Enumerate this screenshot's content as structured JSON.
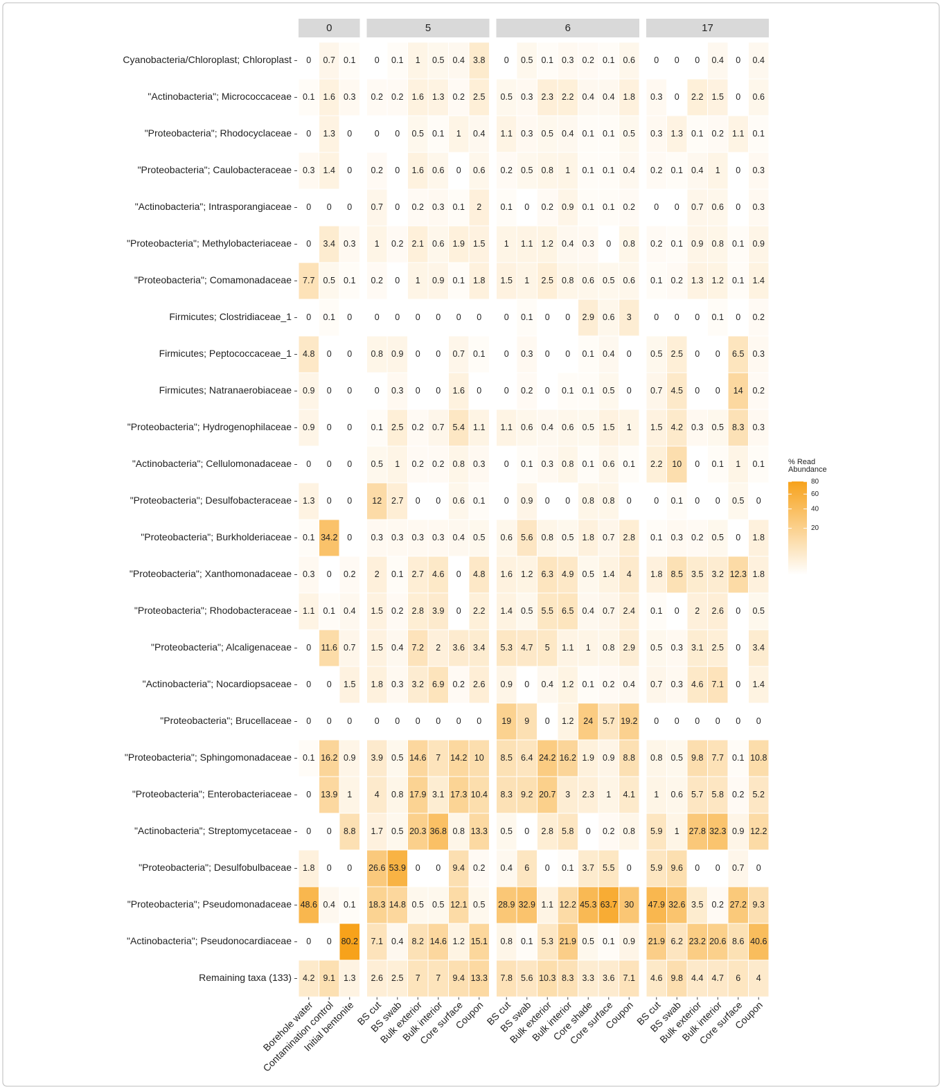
{
  "chart_data": {
    "type": "heatmap",
    "rows": [
      "Cyanobacteria/Chloroplast; Chloroplast",
      "\"Actinobacteria\"; Micrococcaceae",
      "\"Proteobacteria\"; Rhodocyclaceae",
      "\"Proteobacteria\"; Caulobacteraceae",
      "\"Actinobacteria\"; Intrasporangiaceae",
      "\"Proteobacteria\"; Methylobacteriaceae",
      "\"Proteobacteria\"; Comamonadaceae",
      "Firmicutes; Clostridiaceae_1",
      "Firmicutes; Peptococcaceae_1",
      "Firmicutes; Natranaerobiaceae",
      "\"Proteobacteria\"; Hydrogenophilaceae",
      "\"Actinobacteria\"; Cellulomonadaceae",
      "\"Proteobacteria\"; Desulfobacteraceae",
      "\"Proteobacteria\"; Burkholderiaceae",
      "\"Proteobacteria\"; Xanthomonadaceae",
      "\"Proteobacteria\"; Rhodobacteraceae",
      "\"Proteobacteria\"; Alcaligenaceae",
      "\"Actinobacteria\"; Nocardiopsaceae",
      "\"Proteobacteria\"; Brucellaceae",
      "\"Proteobacteria\"; Sphingomonadaceae",
      "\"Proteobacteria\"; Enterobacteriaceae",
      "\"Actinobacteria\"; Streptomycetaceae",
      "\"Proteobacteria\"; Desulfobulbaceae",
      "\"Proteobacteria\"; Pseudomonadaceae",
      "\"Actinobacteria\"; Pseudonocardiaceae",
      "Remaining taxa (133)"
    ],
    "facets": [
      {
        "name": "0",
        "columns": [
          "Borehole water",
          "Contamination control",
          "Initial bentonite"
        ],
        "values": [
          [
            0,
            0.7,
            0.1
          ],
          [
            0.1,
            1.6,
            0.3
          ],
          [
            0,
            1.3,
            0
          ],
          [
            0.3,
            1.4,
            0
          ],
          [
            0,
            0,
            0
          ],
          [
            0,
            3.4,
            0.3
          ],
          [
            7.7,
            0.5,
            0.1
          ],
          [
            0,
            0.1,
            0
          ],
          [
            4.8,
            0,
            0
          ],
          [
            0.9,
            0,
            0
          ],
          [
            0.9,
            0,
            0
          ],
          [
            0,
            0,
            0
          ],
          [
            1.3,
            0,
            0
          ],
          [
            0.1,
            34.2,
            0
          ],
          [
            0.3,
            0,
            0.2
          ],
          [
            1.1,
            0.1,
            0.4
          ],
          [
            0,
            11.6,
            0.7
          ],
          [
            0,
            0,
            1.5
          ],
          [
            0,
            0,
            0
          ],
          [
            0.1,
            16.2,
            0.9
          ],
          [
            0,
            13.9,
            1
          ],
          [
            0,
            0,
            8.8
          ],
          [
            1.8,
            0,
            0
          ],
          [
            48.6,
            0.4,
            0.1
          ],
          [
            0,
            0,
            80.2
          ],
          [
            4.2,
            9.1,
            1.3
          ]
        ]
      },
      {
        "name": "5",
        "columns": [
          "BS cut",
          "BS swab",
          "Bulk exterior",
          "Bulk interior",
          "Core surface",
          "Coupon"
        ],
        "values": [
          [
            0,
            0.1,
            1,
            0.5,
            0.4,
            3.8
          ],
          [
            0.2,
            0.2,
            1.6,
            1.3,
            0.2,
            2.5
          ],
          [
            0,
            0,
            0.5,
            0.1,
            1,
            0.4
          ],
          [
            0.2,
            0,
            1.6,
            0.6,
            0,
            0.6
          ],
          [
            0.7,
            0,
            0.2,
            0.3,
            0.1,
            2
          ],
          [
            1,
            0.2,
            2.1,
            0.6,
            1.9,
            1.5
          ],
          [
            0.2,
            0,
            1,
            0.9,
            0.1,
            1.8
          ],
          [
            0,
            0,
            0,
            0,
            0,
            0
          ],
          [
            0.8,
            0.9,
            0,
            0,
            0.7,
            0.1
          ],
          [
            0,
            0.3,
            0,
            0,
            1.6,
            0
          ],
          [
            0.1,
            2.5,
            0.2,
            0.7,
            5.4,
            1.1
          ],
          [
            0.5,
            1,
            0.2,
            0.2,
            0.8,
            0.3
          ],
          [
            12,
            2.7,
            0,
            0,
            0.6,
            0.1
          ],
          [
            0.3,
            0.3,
            0.3,
            0.3,
            0.4,
            0.5
          ],
          [
            2,
            0.1,
            2.7,
            4.6,
            0,
            4.8
          ],
          [
            1.5,
            0.2,
            2.8,
            3.9,
            0,
            2.2
          ],
          [
            1.5,
            0.4,
            7.2,
            2,
            3.6,
            3.4
          ],
          [
            1.8,
            0.3,
            3.2,
            6.9,
            0.2,
            2.6
          ],
          [
            0,
            0,
            0,
            0,
            0,
            0
          ],
          [
            3.9,
            0.5,
            14.6,
            7,
            14.2,
            10
          ],
          [
            4,
            0.8,
            17.9,
            3.1,
            17.3,
            10.4
          ],
          [
            1.7,
            0.5,
            20.3,
            36.8,
            0.8,
            13.3
          ],
          [
            26.6,
            53.9,
            0,
            0,
            9.4,
            0.2
          ],
          [
            18.3,
            14.8,
            0.5,
            0.5,
            12.1,
            0.5
          ],
          [
            7.1,
            0.4,
            8.2,
            14.6,
            1.2,
            15.1
          ],
          [
            2.6,
            2.5,
            7,
            7,
            9.4,
            13.3
          ]
        ]
      },
      {
        "name": "6",
        "columns": [
          "BS cut",
          "BS swab",
          "Bulk exterior",
          "Bulk interior",
          "Core shade",
          "Core surface",
          "Coupon"
        ],
        "values": [
          [
            0,
            0.5,
            0.1,
            0.3,
            0.2,
            0.1,
            0.6
          ],
          [
            0.5,
            0.3,
            2.3,
            2.2,
            0.4,
            0.4,
            1.8
          ],
          [
            1.1,
            0.3,
            0.5,
            0.4,
            0.1,
            0.1,
            0.5
          ],
          [
            0.2,
            0.5,
            0.8,
            1,
            0.1,
            0.1,
            0.4
          ],
          [
            0.1,
            0,
            0.2,
            0.9,
            0.1,
            0.1,
            0.2
          ],
          [
            1,
            1.1,
            1.2,
            0.4,
            0.3,
            0,
            0.8
          ],
          [
            1.5,
            1,
            2.5,
            0.8,
            0.6,
            0.5,
            0.6
          ],
          [
            0,
            0.1,
            0,
            0,
            2.9,
            0.6,
            3
          ],
          [
            0,
            0.3,
            0,
            0,
            0.1,
            0.4,
            0
          ],
          [
            0,
            0.2,
            0,
            0.1,
            0.1,
            0.5,
            0
          ],
          [
            1.1,
            0.6,
            0.4,
            0.6,
            0.5,
            1.5,
            1
          ],
          [
            0,
            0.1,
            0.3,
            0.8,
            0.1,
            0.6,
            0.1
          ],
          [
            0,
            0.9,
            0,
            0,
            0.8,
            0.8,
            0
          ],
          [
            0.6,
            5.6,
            0.8,
            0.5,
            1.8,
            0.7,
            2.8
          ],
          [
            1.6,
            1.2,
            6.3,
            4.9,
            0.5,
            1.4,
            4
          ],
          [
            1.4,
            0.5,
            5.5,
            6.5,
            0.4,
            0.7,
            2.4
          ],
          [
            5.3,
            4.7,
            5,
            1.1,
            1,
            0.8,
            2.9
          ],
          [
            0.9,
            0,
            0.4,
            1.2,
            0.1,
            0.2,
            0.4
          ],
          [
            19,
            9,
            0,
            1.2,
            24,
            5.7,
            19.2
          ],
          [
            8.5,
            6.4,
            24.2,
            16.2,
            1.9,
            0.9,
            8.8
          ],
          [
            8.3,
            9.2,
            20.7,
            3,
            2.3,
            1,
            4.1
          ],
          [
            0.5,
            0,
            2.8,
            5.8,
            0,
            0.2,
            0.8
          ],
          [
            0.4,
            6,
            0,
            0.1,
            3.7,
            5.5,
            0
          ],
          [
            28.9,
            32.9,
            1.1,
            12.2,
            45.3,
            63.7,
            30
          ],
          [
            0.8,
            0.1,
            5.3,
            21.9,
            0.5,
            0.1,
            0.9
          ],
          [
            7.8,
            5.6,
            10.3,
            8.3,
            3.3,
            3.6,
            7.1
          ]
        ]
      },
      {
        "name": "17",
        "columns": [
          "BS cut",
          "BS swab",
          "Bulk exterior",
          "Bulk interior",
          "Core surface",
          "Coupon"
        ],
        "values": [
          [
            0,
            0,
            0,
            0.4,
            0,
            0.4
          ],
          [
            0.3,
            0,
            2.2,
            1.5,
            0,
            0.6
          ],
          [
            0.3,
            1.3,
            0.1,
            0.2,
            1.1,
            0.1
          ],
          [
            0.2,
            0.1,
            0.4,
            1,
            0,
            0.3
          ],
          [
            0,
            0,
            0.7,
            0.6,
            0,
            0.3
          ],
          [
            0.2,
            0.1,
            0.9,
            0.8,
            0.1,
            0.9
          ],
          [
            0.1,
            0.2,
            1.3,
            1.2,
            0.1,
            1.4
          ],
          [
            0,
            0,
            0,
            0.1,
            0,
            0.2
          ],
          [
            0.5,
            2.5,
            0,
            0,
            6.5,
            0.3
          ],
          [
            0.7,
            4.5,
            0,
            0,
            14,
            0.2
          ],
          [
            1.5,
            4.2,
            0.3,
            0.5,
            8.3,
            0.3
          ],
          [
            2.2,
            10,
            0,
            0.1,
            1,
            0.1
          ],
          [
            0,
            0.1,
            0,
            0,
            0.5,
            0
          ],
          [
            0.1,
            0.3,
            0.2,
            0.5,
            0,
            1.8
          ],
          [
            1.8,
            8.5,
            3.5,
            3.2,
            12.3,
            1.8
          ],
          [
            0.1,
            0,
            2,
            2.6,
            0,
            0.5
          ],
          [
            0.5,
            0.3,
            3.1,
            2.5,
            0,
            3.4
          ],
          [
            0.7,
            0.3,
            4.6,
            7.1,
            0,
            1.4
          ],
          [
            0,
            0,
            0,
            0,
            0,
            0
          ],
          [
            0.8,
            0.5,
            9.8,
            7.7,
            0.1,
            10.8
          ],
          [
            1,
            0.6,
            5.7,
            5.8,
            0.2,
            5.2
          ],
          [
            5.9,
            1,
            27.8,
            32.3,
            0.9,
            12.2
          ],
          [
            5.9,
            9.6,
            0,
            0,
            0.7,
            0
          ],
          [
            47.9,
            32.6,
            3.5,
            0.2,
            27.2,
            9.3
          ],
          [
            21.9,
            6.2,
            23.2,
            20.6,
            8.6,
            40.6
          ],
          [
            4.6,
            9.8,
            4.4,
            4.7,
            6,
            4
          ]
        ]
      }
    ],
    "legend_title": "% Read Abundance",
    "color_lim": [
      0,
      80.2
    ],
    "color_scale": "sqrt",
    "color_low": "#ffffff",
    "color_high": "#f7a21b",
    "color_ticks": [
      20,
      40,
      60,
      80
    ]
  }
}
